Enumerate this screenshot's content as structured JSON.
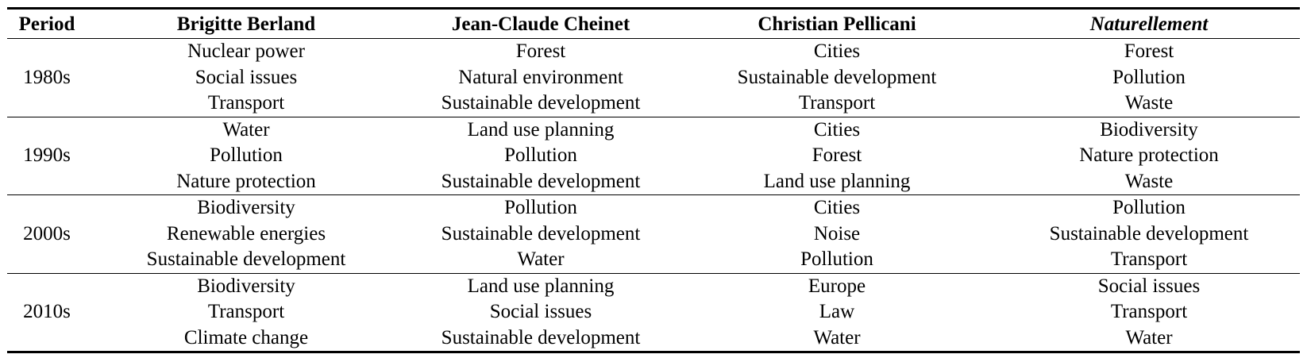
{
  "headers": [
    "Period",
    "Brigitte Berland",
    "Jean-Claude Cheinet",
    "Christian Pellicani",
    "Naturellement"
  ],
  "periods": [
    {
      "label": "1980s",
      "rows": [
        [
          "Nuclear power",
          "Forest",
          "Cities",
          "Forest"
        ],
        [
          "Social issues",
          "Natural environment",
          "Sustainable development",
          "Pollution"
        ],
        [
          "Transport",
          "Sustainable development",
          "Transport",
          "Waste"
        ]
      ]
    },
    {
      "label": "1990s",
      "rows": [
        [
          "Water",
          "Land use planning",
          "Cities",
          "Biodiversity"
        ],
        [
          "Pollution",
          "Pollution",
          "Forest",
          "Nature protection"
        ],
        [
          "Nature protection",
          "Sustainable development",
          "Land use planning",
          "Waste"
        ]
      ]
    },
    {
      "label": "2000s",
      "rows": [
        [
          "Biodiversity",
          "Pollution",
          "Cities",
          "Pollution"
        ],
        [
          "Renewable energies",
          "Sustainable development",
          "Noise",
          "Sustainable development"
        ],
        [
          "Sustainable development",
          "Water",
          "Pollution",
          "Transport"
        ]
      ]
    },
    {
      "label": "2010s",
      "rows": [
        [
          "Biodiversity",
          "Land use planning",
          "Europe",
          "Social issues"
        ],
        [
          "Transport",
          "Social issues",
          "Law",
          "Transport"
        ],
        [
          "Climate change",
          "Sustainable development",
          "Water",
          "Water"
        ]
      ]
    }
  ]
}
